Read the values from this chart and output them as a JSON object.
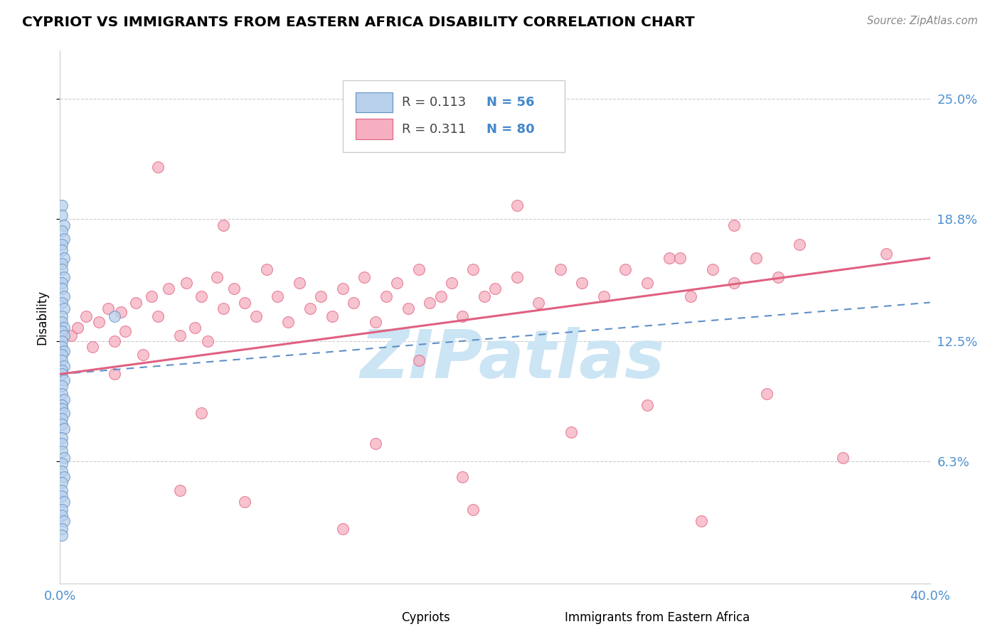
{
  "title": "CYPRIOT VS IMMIGRANTS FROM EASTERN AFRICA DISABILITY CORRELATION CHART",
  "source": "Source: ZipAtlas.com",
  "ylabel": "Disability",
  "xlim": [
    0.0,
    0.4
  ],
  "ylim": [
    0.0,
    0.275
  ],
  "yticks": [
    0.063,
    0.125,
    0.188,
    0.25
  ],
  "ytick_labels": [
    "6.3%",
    "12.5%",
    "18.8%",
    "25.0%"
  ],
  "xticks": [
    0.0,
    0.1,
    0.2,
    0.3,
    0.4
  ],
  "xtick_labels": [
    "0.0%",
    "",
    "",
    "",
    "40.0%"
  ],
  "legend_r_blue": "R = 0.113",
  "legend_n_blue": "N = 56",
  "legend_r_pink": "R = 0.311",
  "legend_n_pink": "N = 80",
  "blue_color": "#b8d0ea",
  "pink_color": "#f5afc0",
  "blue_edge_color": "#6090c8",
  "pink_edge_color": "#e06080",
  "blue_line_color": "#6090c8",
  "pink_line_color": "#e06080",
  "watermark": "ZIPatlas",
  "watermark_color": "#cce5f5",
  "grid_color": "#cccccc",
  "spine_color": "#cccccc",
  "cypriot_x": [
    0.001,
    0.001,
    0.002,
    0.001,
    0.002,
    0.001,
    0.001,
    0.002,
    0.001,
    0.001,
    0.002,
    0.001,
    0.001,
    0.002,
    0.001,
    0.002,
    0.001,
    0.001,
    0.002,
    0.001,
    0.002,
    0.001,
    0.001,
    0.002,
    0.001,
    0.001,
    0.002,
    0.001,
    0.001,
    0.002,
    0.001,
    0.001,
    0.002,
    0.001,
    0.001,
    0.002,
    0.001,
    0.001,
    0.002,
    0.001,
    0.001,
    0.001,
    0.002,
    0.001,
    0.001,
    0.002,
    0.001,
    0.001,
    0.001,
    0.002,
    0.025,
    0.001,
    0.001,
    0.002,
    0.001,
    0.001
  ],
  "cypriot_y": [
    0.195,
    0.19,
    0.185,
    0.182,
    0.178,
    0.175,
    0.172,
    0.168,
    0.165,
    0.162,
    0.158,
    0.155,
    0.152,
    0.148,
    0.145,
    0.142,
    0.138,
    0.135,
    0.132,
    0.13,
    0.128,
    0.125,
    0.122,
    0.12,
    0.118,
    0.115,
    0.112,
    0.11,
    0.108,
    0.105,
    0.102,
    0.098,
    0.095,
    0.092,
    0.09,
    0.088,
    0.085,
    0.082,
    0.08,
    0.075,
    0.072,
    0.068,
    0.065,
    0.062,
    0.058,
    0.055,
    0.052,
    0.048,
    0.045,
    0.042,
    0.138,
    0.038,
    0.035,
    0.032,
    0.028,
    0.025
  ],
  "eastern_africa_x": [
    0.005,
    0.008,
    0.012,
    0.015,
    0.018,
    0.022,
    0.025,
    0.028,
    0.03,
    0.035,
    0.038,
    0.042,
    0.045,
    0.05,
    0.055,
    0.058,
    0.062,
    0.065,
    0.068,
    0.072,
    0.075,
    0.08,
    0.085,
    0.09,
    0.095,
    0.1,
    0.105,
    0.11,
    0.115,
    0.12,
    0.125,
    0.13,
    0.135,
    0.14,
    0.145,
    0.15,
    0.155,
    0.16,
    0.165,
    0.17,
    0.175,
    0.18,
    0.185,
    0.19,
    0.195,
    0.2,
    0.21,
    0.22,
    0.23,
    0.24,
    0.25,
    0.26,
    0.27,
    0.28,
    0.29,
    0.3,
    0.31,
    0.32,
    0.33,
    0.34,
    0.045,
    0.21,
    0.31,
    0.025,
    0.165,
    0.38,
    0.27,
    0.065,
    0.145,
    0.325,
    0.235,
    0.185,
    0.085,
    0.055,
    0.19,
    0.36,
    0.295,
    0.13,
    0.075,
    0.285
  ],
  "eastern_africa_y": [
    0.128,
    0.132,
    0.138,
    0.122,
    0.135,
    0.142,
    0.125,
    0.14,
    0.13,
    0.145,
    0.118,
    0.148,
    0.138,
    0.152,
    0.128,
    0.155,
    0.132,
    0.148,
    0.125,
    0.158,
    0.142,
    0.152,
    0.145,
    0.138,
    0.162,
    0.148,
    0.135,
    0.155,
    0.142,
    0.148,
    0.138,
    0.152,
    0.145,
    0.158,
    0.135,
    0.148,
    0.155,
    0.142,
    0.162,
    0.145,
    0.148,
    0.155,
    0.138,
    0.162,
    0.148,
    0.152,
    0.158,
    0.145,
    0.162,
    0.155,
    0.148,
    0.162,
    0.155,
    0.168,
    0.148,
    0.162,
    0.155,
    0.168,
    0.158,
    0.175,
    0.215,
    0.195,
    0.185,
    0.108,
    0.115,
    0.17,
    0.092,
    0.088,
    0.072,
    0.098,
    0.078,
    0.055,
    0.042,
    0.048,
    0.038,
    0.065,
    0.032,
    0.028,
    0.185,
    0.168
  ],
  "blue_trendline_x": [
    0.0,
    0.4
  ],
  "blue_trendline_y": [
    0.108,
    0.145
  ],
  "pink_trendline_x": [
    0.0,
    0.4
  ],
  "pink_trendline_y": [
    0.108,
    0.168
  ]
}
